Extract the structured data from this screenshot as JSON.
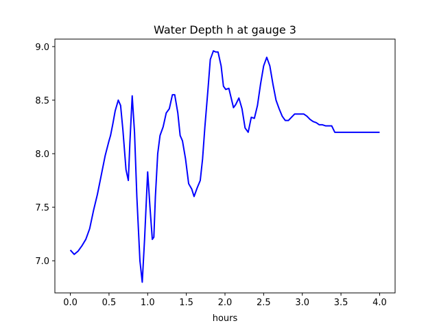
{
  "chart_data": {
    "type": "line",
    "title": "Water Depth h at gauge 3",
    "xlabel": "hours",
    "ylabel": "",
    "xlim": [
      -0.2,
      4.2
    ],
    "ylim": [
      6.7,
      9.07
    ],
    "xticks": [
      0.0,
      0.5,
      1.0,
      1.5,
      2.0,
      2.5,
      3.0,
      3.5,
      4.0
    ],
    "xtick_labels": [
      "0.0",
      "0.5",
      "1.0",
      "1.5",
      "2.0",
      "2.5",
      "3.0",
      "3.5",
      "4.0"
    ],
    "yticks": [
      7.0,
      7.5,
      8.0,
      8.5,
      9.0
    ],
    "ytick_labels": [
      "7.0",
      "7.5",
      "8.0",
      "8.5",
      "9.0"
    ],
    "grid": false,
    "series": [
      {
        "color": "#0000ff",
        "x": [
          0.0,
          0.05,
          0.1,
          0.15,
          0.2,
          0.25,
          0.3,
          0.35,
          0.4,
          0.45,
          0.5,
          0.52,
          0.55,
          0.58,
          0.62,
          0.65,
          0.68,
          0.72,
          0.75,
          0.77,
          0.8,
          0.83,
          0.86,
          0.9,
          0.93,
          0.96,
          1.0,
          1.03,
          1.06,
          1.08,
          1.1,
          1.13,
          1.16,
          1.2,
          1.24,
          1.28,
          1.32,
          1.35,
          1.39,
          1.42,
          1.45,
          1.49,
          1.53,
          1.57,
          1.6,
          1.64,
          1.68,
          1.71,
          1.74,
          1.78,
          1.81,
          1.85,
          1.88,
          1.91,
          1.95,
          1.98,
          2.01,
          2.05,
          2.08,
          2.11,
          2.14,
          2.18,
          2.22,
          2.26,
          2.3,
          2.34,
          2.38,
          2.42,
          2.46,
          2.5,
          2.54,
          2.58,
          2.62,
          2.66,
          2.7,
          2.74,
          2.78,
          2.82,
          2.86,
          2.9,
          2.94,
          2.98,
          3.02,
          3.06,
          3.1,
          3.14,
          3.18,
          3.22,
          3.26,
          3.3,
          3.34,
          3.38,
          3.42,
          3.46,
          3.5,
          3.54,
          3.58,
          3.62,
          3.66,
          3.7,
          3.74,
          3.78,
          3.82,
          3.86,
          3.9,
          3.94,
          3.97,
          4.0
        ],
        "y": [
          7.1,
          7.06,
          7.09,
          7.14,
          7.2,
          7.3,
          7.47,
          7.62,
          7.8,
          7.98,
          8.12,
          8.17,
          8.28,
          8.4,
          8.5,
          8.45,
          8.22,
          7.85,
          7.75,
          8.1,
          8.54,
          8.2,
          7.6,
          7.0,
          6.8,
          7.2,
          7.83,
          7.5,
          7.2,
          7.22,
          7.6,
          8.0,
          8.17,
          8.25,
          8.38,
          8.42,
          8.55,
          8.55,
          8.38,
          8.17,
          8.12,
          7.95,
          7.72,
          7.67,
          7.6,
          7.68,
          7.75,
          7.95,
          8.25,
          8.6,
          8.88,
          8.96,
          8.95,
          8.95,
          8.82,
          8.63,
          8.6,
          8.61,
          8.52,
          8.43,
          8.46,
          8.52,
          8.42,
          8.24,
          8.2,
          8.34,
          8.33,
          8.45,
          8.65,
          8.82,
          8.9,
          8.82,
          8.65,
          8.5,
          8.42,
          8.35,
          8.31,
          8.31,
          8.34,
          8.37,
          8.37,
          8.37,
          8.37,
          8.35,
          8.32,
          8.3,
          8.29,
          8.27,
          8.27,
          8.26,
          8.26,
          8.26,
          8.2,
          8.2,
          8.2,
          8.2,
          8.2,
          8.2,
          8.2,
          8.2,
          8.2,
          8.2,
          8.2,
          8.2,
          8.2,
          8.2,
          8.2,
          8.2
        ]
      }
    ]
  }
}
